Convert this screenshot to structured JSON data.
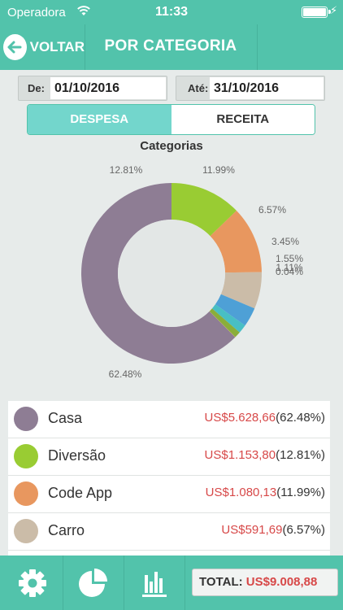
{
  "status": {
    "carrier": "Operadora",
    "time": "11:33"
  },
  "nav": {
    "back_label": "VOLTAR",
    "title": "POR CATEGORIA"
  },
  "dates": {
    "from_label": "De:",
    "from_value": "01/10/2016",
    "to_label": "Até:",
    "to_value": "31/10/2016"
  },
  "segments": {
    "expense": "DESPESA",
    "income": "RECEITA",
    "selected": "expense"
  },
  "chart_data": {
    "type": "pie",
    "title": "Categorias",
    "style": "donut",
    "slices": [
      {
        "label": "12.81%",
        "value": 12.81,
        "color": "#99cc33"
      },
      {
        "label": "11.99%",
        "value": 11.99,
        "color": "#e8975f"
      },
      {
        "label": "6.57%",
        "value": 6.57,
        "color": "#cbbca8"
      },
      {
        "label": "3.45%",
        "value": 3.45,
        "color": "#4ea0d6"
      },
      {
        "label": "1.55%",
        "value": 1.55,
        "color": "#48bfc4"
      },
      {
        "label": "1.11%",
        "value": 1.11,
        "color": "#8aae3a"
      },
      {
        "label": "0.04%",
        "value": 0.04,
        "color": "#d9b23c"
      },
      {
        "label": "62.48%",
        "value": 62.48,
        "color": "#8e7d94"
      }
    ]
  },
  "categories": [
    {
      "name": "Casa",
      "money": "US$5.628,66",
      "pct": "(62.48%)",
      "color": "#8e7d94"
    },
    {
      "name": "Diversão",
      "money": "US$1.153,80",
      "pct": "(12.81%)",
      "color": "#99cc33"
    },
    {
      "name": "Code App",
      "money": "US$1.080,13",
      "pct": "(11.99%)",
      "color": "#e8975f"
    },
    {
      "name": "Carro",
      "money": "US$591,69",
      "pct": "(6.57%)",
      "color": "#cbbca8"
    }
  ],
  "footer": {
    "total_label": "TOTAL:",
    "total_value": "US$9.008,88"
  },
  "icons": [
    "wifi-icon",
    "battery-icon",
    "back-arrow-icon",
    "gear-icon",
    "pie-chart-icon",
    "bar-chart-icon"
  ]
}
